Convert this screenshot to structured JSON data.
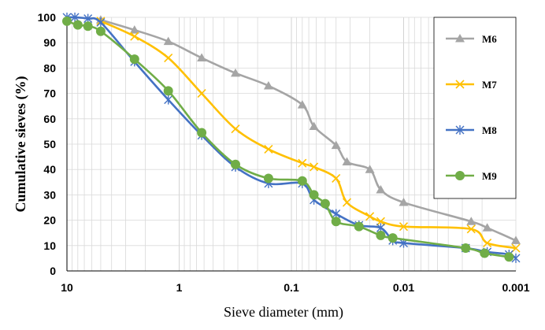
{
  "chart_data": {
    "type": "line",
    "xlabel": "Sieve diameter (mm)",
    "ylabel": "Cumulative sieves (%)",
    "xscale": "log",
    "xaxis_reversed": true,
    "xlim": [
      10,
      0.001
    ],
    "ylim": [
      0,
      100
    ],
    "y_ticks": [
      "0",
      "10",
      "20",
      "30",
      "40",
      "50",
      "60",
      "70",
      "80",
      "90",
      "100"
    ],
    "x_ticks": [
      {
        "value": 10,
        "label": "10"
      },
      {
        "value": 1,
        "label": "1"
      },
      {
        "value": 0.1,
        "label": "0.1"
      },
      {
        "value": 0.01,
        "label": "0.01"
      },
      {
        "value": 0.001,
        "label": "0.001"
      }
    ],
    "grid": true,
    "legend_position": "right",
    "series": [
      {
        "name": "M6",
        "color": "#a5a5a5",
        "marker": "triangle",
        "points": [
          [
            5,
            99
          ],
          [
            2.5,
            95
          ],
          [
            1.25,
            90.5
          ],
          [
            0.63,
            84
          ],
          [
            0.315,
            78
          ],
          [
            0.16,
            73
          ],
          [
            0.08,
            65.5
          ],
          [
            0.063,
            57
          ],
          [
            0.04,
            49.5
          ],
          [
            0.032,
            43
          ],
          [
            0.02,
            40
          ],
          [
            0.016,
            32
          ],
          [
            0.01,
            27
          ],
          [
            0.0025,
            19.5
          ],
          [
            0.0018,
            17
          ],
          [
            0.001,
            12
          ]
        ]
      },
      {
        "name": "M7",
        "color": "#ffc000",
        "marker": "x",
        "points": [
          [
            5,
            98.5
          ],
          [
            2.5,
            92.5
          ],
          [
            1.25,
            84
          ],
          [
            0.63,
            70
          ],
          [
            0.315,
            56
          ],
          [
            0.16,
            48
          ],
          [
            0.08,
            42.5
          ],
          [
            0.063,
            41
          ],
          [
            0.04,
            36.5
          ],
          [
            0.032,
            27
          ],
          [
            0.02,
            21.5
          ],
          [
            0.016,
            19.5
          ],
          [
            0.01,
            17.5
          ],
          [
            0.0025,
            16.5
          ],
          [
            0.0018,
            11
          ],
          [
            0.001,
            9
          ]
        ]
      },
      {
        "name": "M8",
        "color": "#4472c4",
        "marker": "star",
        "points": [
          [
            10,
            100
          ],
          [
            8.5,
            100
          ],
          [
            6.5,
            99.5
          ],
          [
            5,
            98
          ],
          [
            2.5,
            82.5
          ],
          [
            1.25,
            67.5
          ],
          [
            0.63,
            53.5
          ],
          [
            0.315,
            41
          ],
          [
            0.16,
            34.5
          ],
          [
            0.08,
            34.5
          ],
          [
            0.063,
            28
          ],
          [
            0.04,
            22.5
          ],
          [
            0.025,
            18
          ],
          [
            0.016,
            17
          ],
          [
            0.0125,
            12
          ],
          [
            0.01,
            11
          ],
          [
            0.0028,
            9
          ],
          [
            0.0018,
            7.5
          ],
          [
            0.00115,
            6.5
          ],
          [
            0.001,
            5
          ]
        ]
      },
      {
        "name": "M9",
        "color": "#70ad47",
        "marker": "circle",
        "points": [
          [
            10,
            98.5
          ],
          [
            8,
            97
          ],
          [
            6.5,
            96.5
          ],
          [
            5,
            94.5
          ],
          [
            2.5,
            83.5
          ],
          [
            1.25,
            71
          ],
          [
            0.63,
            54.5
          ],
          [
            0.315,
            42
          ],
          [
            0.16,
            36.5
          ],
          [
            0.08,
            35.5
          ],
          [
            0.063,
            30
          ],
          [
            0.05,
            26.5
          ],
          [
            0.04,
            19.5
          ],
          [
            0.025,
            17.5
          ],
          [
            0.016,
            14
          ],
          [
            0.0125,
            13
          ],
          [
            0.0028,
            9
          ],
          [
            0.0019,
            7
          ],
          [
            0.00115,
            5.5
          ]
        ]
      }
    ]
  }
}
